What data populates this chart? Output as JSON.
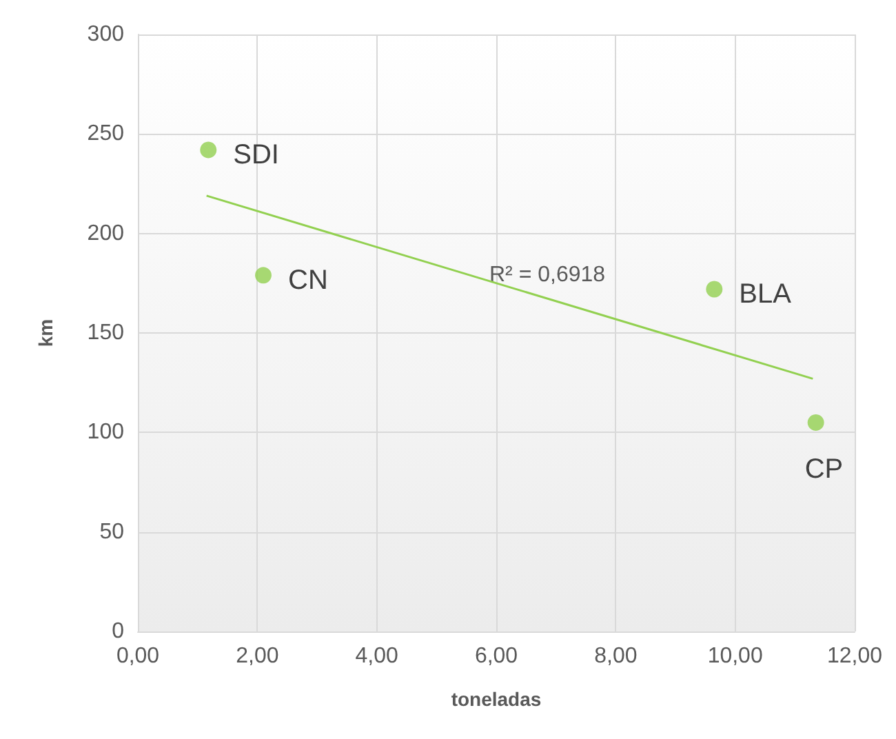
{
  "chart_data": {
    "type": "scatter",
    "xlabel": "toneladas",
    "ylabel": "km",
    "series": [
      {
        "color": "#92d050",
        "x": [
          1.18,
          2.1,
          9.65,
          11.35
        ],
        "values": [
          242,
          179,
          172,
          105
        ]
      },
      {
        "type": "line",
        "color": "#92d050",
        "x": [
          1.15,
          11.3
        ],
        "values": [
          219,
          127
        ],
        "marker": "none"
      }
    ],
    "annotations": [
      {
        "text": "SDI",
        "x": 1.18,
        "y": 242
      },
      {
        "text": "CN",
        "x": 2.1,
        "y": 179
      },
      {
        "text": "BLA",
        "x": 9.65,
        "y": 172
      },
      {
        "text": "CP",
        "x": 11.35,
        "y": 105
      },
      "R² = 0,6918"
    ],
    "xlim": [
      0,
      12
    ],
    "xticks": [
      {
        "value": 0,
        "label": "0,00"
      },
      {
        "value": 2,
        "label": "2,00"
      },
      {
        "value": 4,
        "label": "4,00"
      },
      {
        "value": 6,
        "label": "6,00"
      },
      {
        "value": 8,
        "label": "8,00"
      },
      {
        "value": 10,
        "label": "10,00"
      },
      {
        "value": 12,
        "label": "12,00"
      }
    ],
    "ylim": [
      0,
      300
    ],
    "yticks": [
      0,
      50,
      100,
      150,
      200,
      250,
      300
    ],
    "grid": true,
    "marker": "circle"
  }
}
